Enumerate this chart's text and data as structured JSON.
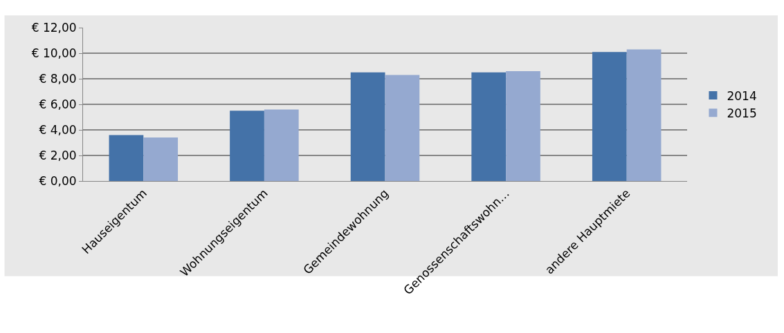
{
  "chart_data": {
    "type": "bar",
    "categories": [
      "Hauseigentum",
      "Wohnungseigentum",
      "Gemeindewohnung",
      "Genossenschaftswohn…",
      "andere Hauptmiete"
    ],
    "series": [
      {
        "name": "2014",
        "color": "#4472a8",
        "values": [
          3.6,
          5.5,
          8.5,
          8.5,
          10.1
        ]
      },
      {
        "name": "2015",
        "color": "#95a9d0",
        "values": [
          3.4,
          5.6,
          8.3,
          8.6,
          10.3
        ]
      }
    ],
    "ylim": [
      0,
      12
    ],
    "yticks": [
      {
        "value": 0,
        "label": "€ 0,00"
      },
      {
        "value": 2,
        "label": "€ 2,00"
      },
      {
        "value": 4,
        "label": "€ 4,00"
      },
      {
        "value": 6,
        "label": "€ 6,00"
      },
      {
        "value": 8,
        "label": "€ 8,00"
      },
      {
        "value": 10,
        "label": "€ 10,00"
      },
      {
        "value": 12,
        "label": "€ 12,00"
      }
    ],
    "grid": "y",
    "legend": "right"
  }
}
